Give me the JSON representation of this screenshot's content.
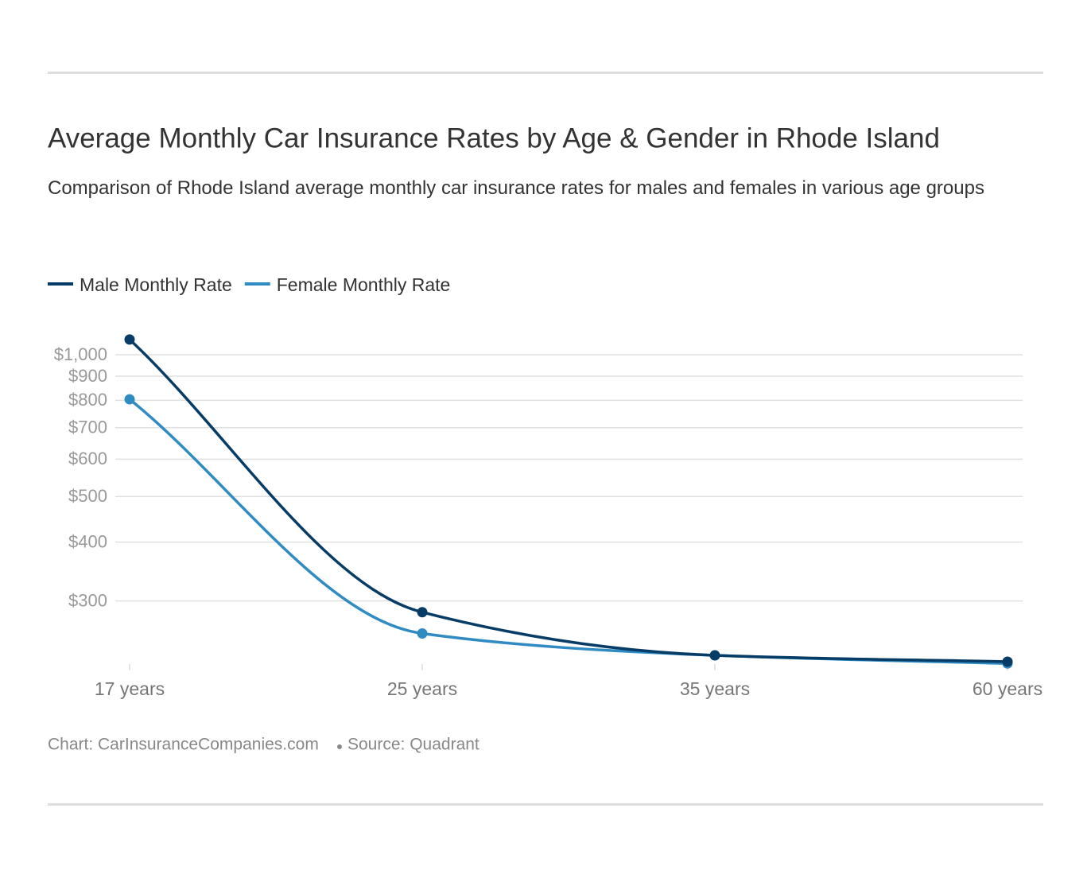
{
  "chart_data": {
    "type": "line",
    "title": "Average Monthly Car Insurance Rates by Age & Gender in Rhode Island",
    "subtitle": "Comparison of Rhode Island average monthly car insurance rates for males and females in various age groups",
    "categories": [
      "17 years",
      "25 years",
      "35 years",
      "60 years"
    ],
    "series": [
      {
        "name": "Male Monthly Rate",
        "color": "#063c66",
        "values": [
          1077,
          284,
          230,
          223
        ]
      },
      {
        "name": "Female Monthly Rate",
        "color": "#2f8bc2",
        "values": [
          804,
          256,
          230,
          221
        ]
      }
    ],
    "ylim": [
      212,
      1150
    ],
    "log_scale": true,
    "grid": true,
    "yticks": [
      {
        "value": 300,
        "label": "$300"
      },
      {
        "value": 400,
        "label": "$400"
      },
      {
        "value": 500,
        "label": "$500"
      },
      {
        "value": 600,
        "label": "$600"
      },
      {
        "value": 700,
        "label": "$700"
      },
      {
        "value": 800,
        "label": "$800"
      },
      {
        "value": 900,
        "label": "$900"
      },
      {
        "value": 1000,
        "label": "$1,000"
      }
    ],
    "credit": "Chart: CarInsuranceCompanies.com",
    "source": "Source: Quadrant"
  }
}
